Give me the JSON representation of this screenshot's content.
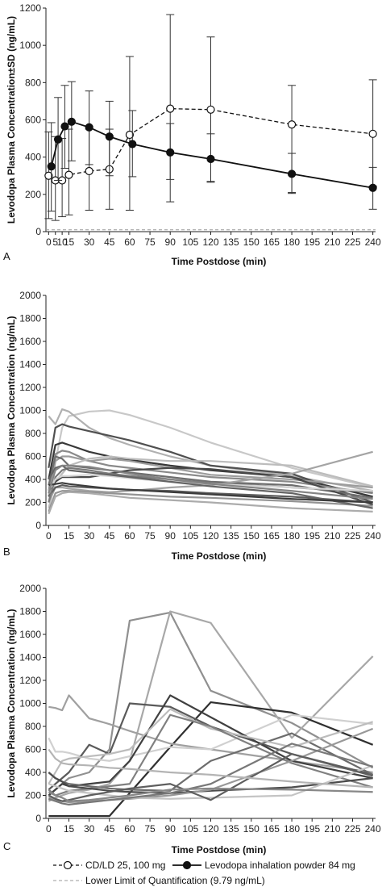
{
  "chart_data": [
    {
      "panel": "A",
      "type": "line",
      "xlabel": "Time Postdose (min)",
      "ylabel": "Levodopa Plasma Concentration±SD (ng/mL)",
      "xlim": [
        -2,
        242
      ],
      "ylim": [
        0,
        1200
      ],
      "xticks": [
        0,
        5,
        10,
        15,
        30,
        45,
        60,
        75,
        90,
        105,
        120,
        135,
        150,
        165,
        180,
        195,
        210,
        225,
        240
      ],
      "yticks": [
        0,
        200,
        400,
        600,
        800,
        1000,
        1200
      ],
      "lloq": 9.79,
      "series": [
        {
          "name": "CD/LD 25, 100 mg",
          "marker": "open-circle",
          "line": "dashed",
          "x": [
            0,
            5,
            10,
            15,
            30,
            45,
            60,
            90,
            120,
            180,
            240
          ],
          "y": [
            300,
            275,
            275,
            305,
            325,
            335,
            520,
            660,
            655,
            575,
            525
          ],
          "err_low": [
            70,
            60,
            80,
            90,
            115,
            120,
            115,
            160,
            270,
            210,
            245
          ],
          "err_high": [
            535,
            510,
            500,
            550,
            550,
            550,
            940,
            1165,
            1045,
            785,
            815
          ]
        },
        {
          "name": "Levodopa inhalation powder 84 mg",
          "marker": "filled-circle",
          "line": "solid",
          "x": [
            2,
            7,
            12,
            17,
            30,
            45,
            62,
            90,
            120,
            180,
            240
          ],
          "y": [
            350,
            495,
            565,
            590,
            560,
            510,
            470,
            425,
            390,
            310,
            235
          ],
          "err_low": [
            110,
            275,
            340,
            380,
            360,
            300,
            295,
            280,
            265,
            205,
            120
          ],
          "err_high": [
            585,
            720,
            785,
            805,
            755,
            700,
            650,
            580,
            525,
            420,
            345
          ]
        }
      ]
    },
    {
      "panel": "B",
      "type": "line",
      "xlabel": "Time Postdose (min)",
      "ylabel": "Levodopa Plasma Concentration (ng/mL)",
      "xlim": [
        -2,
        242
      ],
      "ylim": [
        0,
        2000
      ],
      "xticks": [
        0,
        15,
        30,
        45,
        60,
        75,
        90,
        105,
        120,
        135,
        150,
        165,
        180,
        195,
        210,
        225,
        240
      ],
      "yticks": [
        0,
        200,
        400,
        600,
        800,
        1000,
        1200,
        1400,
        1600,
        1800,
        2000
      ],
      "x": [
        0,
        5,
        10,
        15,
        30,
        45,
        60,
        90,
        120,
        180,
        240
      ],
      "series": [
        {
          "color": "#c8c8c8",
          "y": [
            200,
            550,
            850,
            950,
            990,
            1000,
            960,
            850,
            720,
            500,
            330
          ]
        },
        {
          "color": "#b0b0b0",
          "y": [
            950,
            880,
            1010,
            990,
            850,
            760,
            700,
            600,
            520,
            430,
            300
          ]
        },
        {
          "color": "#505050",
          "y": [
            500,
            850,
            880,
            860,
            820,
            780,
            740,
            640,
            520,
            450,
            200
          ]
        },
        {
          "color": "#383838",
          "y": [
            400,
            700,
            720,
            700,
            640,
            600,
            570,
            520,
            480,
            420,
            250
          ]
        },
        {
          "color": "#8a8a8a",
          "y": [
            300,
            620,
            650,
            640,
            560,
            520,
            500,
            460,
            420,
            380,
            280
          ]
        },
        {
          "color": "#9c9c9c",
          "y": [
            250,
            560,
            600,
            600,
            560,
            580,
            560,
            500,
            440,
            400,
            330
          ]
        },
        {
          "color": "#6e6e6e",
          "y": [
            350,
            600,
            580,
            520,
            500,
            480,
            460,
            420,
            380,
            350,
            240
          ]
        },
        {
          "color": "#bcbcbc",
          "y": [
            150,
            380,
            450,
            520,
            580,
            600,
            580,
            560,
            560,
            520,
            340
          ]
        },
        {
          "color": "#4a4a4a",
          "y": [
            300,
            380,
            420,
            420,
            420,
            450,
            480,
            500,
            490,
            420,
            180
          ]
        },
        {
          "color": "#a4a4a4",
          "y": [
            200,
            330,
            330,
            320,
            300,
            290,
            300,
            330,
            350,
            450,
            640
          ]
        },
        {
          "color": "#5c5c5c",
          "y": [
            250,
            330,
            350,
            340,
            330,
            320,
            310,
            300,
            280,
            250,
            200
          ]
        },
        {
          "color": "#7a7a7a",
          "y": [
            200,
            420,
            480,
            500,
            480,
            450,
            430,
            400,
            370,
            330,
            290
          ]
        },
        {
          "color": "#949494",
          "y": [
            120,
            280,
            300,
            300,
            290,
            280,
            270,
            250,
            240,
            210,
            170
          ]
        },
        {
          "color": "#d4d4d4",
          "y": [
            300,
            400,
            430,
            430,
            440,
            430,
            410,
            380,
            360,
            330,
            300
          ]
        },
        {
          "color": "#646464",
          "y": [
            400,
            500,
            520,
            480,
            460,
            440,
            420,
            380,
            340,
            280,
            150
          ]
        },
        {
          "color": "#acacac",
          "y": [
            100,
            250,
            280,
            290,
            280,
            260,
            240,
            220,
            200,
            150,
            120
          ]
        },
        {
          "color": "#3c3c3c",
          "y": [
            350,
            360,
            370,
            360,
            340,
            320,
            310,
            290,
            270,
            230,
            200
          ]
        },
        {
          "color": "#848484",
          "y": [
            280,
            480,
            520,
            520,
            510,
            480,
            450,
            400,
            360,
            300,
            230
          ]
        }
      ]
    },
    {
      "panel": "C",
      "type": "line",
      "xlabel": "Time Postdose (min)",
      "ylabel": "Levodopa Plasma Concentration (ng/mL)",
      "xlim": [
        -2,
        242
      ],
      "ylim": [
        0,
        2000
      ],
      "xticks": [
        0,
        15,
        30,
        45,
        60,
        75,
        90,
        105,
        120,
        135,
        150,
        165,
        180,
        195,
        210,
        225,
        240
      ],
      "yticks": [
        0,
        200,
        400,
        600,
        800,
        1000,
        1200,
        1400,
        1600,
        1800,
        2000
      ],
      "x": [
        0,
        5,
        10,
        15,
        30,
        45,
        60,
        90,
        120,
        180,
        240
      ],
      "series": [
        {
          "color": "#909090",
          "y": [
            200,
            250,
            300,
            350,
            400,
            600,
            1720,
            1790,
            1110,
            830,
            440
          ]
        },
        {
          "color": "#a8a8a8",
          "y": [
            150,
            180,
            200,
            220,
            250,
            300,
            500,
            1800,
            1700,
            700,
            1410
          ]
        },
        {
          "color": "#303030",
          "y": [
            20,
            20,
            20,
            20,
            20,
            20,
            220,
            620,
            1010,
            920,
            640
          ]
        },
        {
          "color": "#a0a0a0",
          "y": [
            970,
            960,
            940,
            1070,
            870,
            820,
            760,
            650,
            600,
            500,
            400
          ]
        },
        {
          "color": "#d0d0d0",
          "y": [
            700,
            580,
            580,
            570,
            520,
            500,
            540,
            620,
            600,
            900,
            820
          ]
        },
        {
          "color": "#5a5a5a",
          "y": [
            250,
            300,
            350,
            400,
            640,
            560,
            1000,
            970,
            800,
            560,
            380
          ]
        },
        {
          "color": "#404040",
          "y": [
            200,
            250,
            300,
            280,
            300,
            320,
            500,
            1070,
            880,
            500,
            350
          ]
        },
        {
          "color": "#6c6c6c",
          "y": [
            400,
            350,
            320,
            300,
            280,
            260,
            250,
            240,
            500,
            740,
            380
          ]
        },
        {
          "color": "#bcbcbc",
          "y": [
            300,
            400,
            500,
            520,
            540,
            560,
            600,
            950,
            780,
            620,
            840
          ]
        },
        {
          "color": "#808080",
          "y": [
            250,
            200,
            220,
            240,
            260,
            280,
            300,
            900,
            800,
            480,
            270
          ]
        },
        {
          "color": "#4c4c4c",
          "y": [
            400,
            350,
            320,
            280,
            260,
            240,
            230,
            220,
            240,
            270,
            350
          ]
        },
        {
          "color": "#989898",
          "y": [
            180,
            160,
            150,
            140,
            150,
            160,
            170,
            200,
            250,
            500,
            780
          ]
        },
        {
          "color": "#c4c4c4",
          "y": [
            300,
            280,
            260,
            240,
            220,
            200,
            180,
            170,
            180,
            200,
            460
          ]
        },
        {
          "color": "#787878",
          "y": [
            170,
            150,
            130,
            120,
            140,
            160,
            180,
            220,
            300,
            650,
            450
          ]
        },
        {
          "color": "#5e5e5e",
          "y": [
            200,
            170,
            150,
            160,
            200,
            230,
            260,
            300,
            160,
            560,
            370
          ]
        },
        {
          "color": "#b4b4b4",
          "y": [
            600,
            520,
            480,
            470,
            460,
            440,
            430,
            400,
            380,
            320,
            270
          ]
        },
        {
          "color": "#888888",
          "y": [
            230,
            200,
            180,
            150,
            160,
            180,
            200,
            250,
            260,
            250,
            230
          ]
        }
      ]
    }
  ],
  "legend": {
    "items": [
      {
        "label": "CD/LD 25, 100 mg",
        "marker": "open-circle",
        "line": "dashed"
      },
      {
        "label": "Levodopa inhalation powder 84 mg",
        "marker": "filled-circle",
        "line": "solid"
      },
      {
        "label": "Lower Limit of Quantification (9.79 ng/mL)",
        "marker": "none",
        "line": "dashed-light"
      }
    ]
  }
}
